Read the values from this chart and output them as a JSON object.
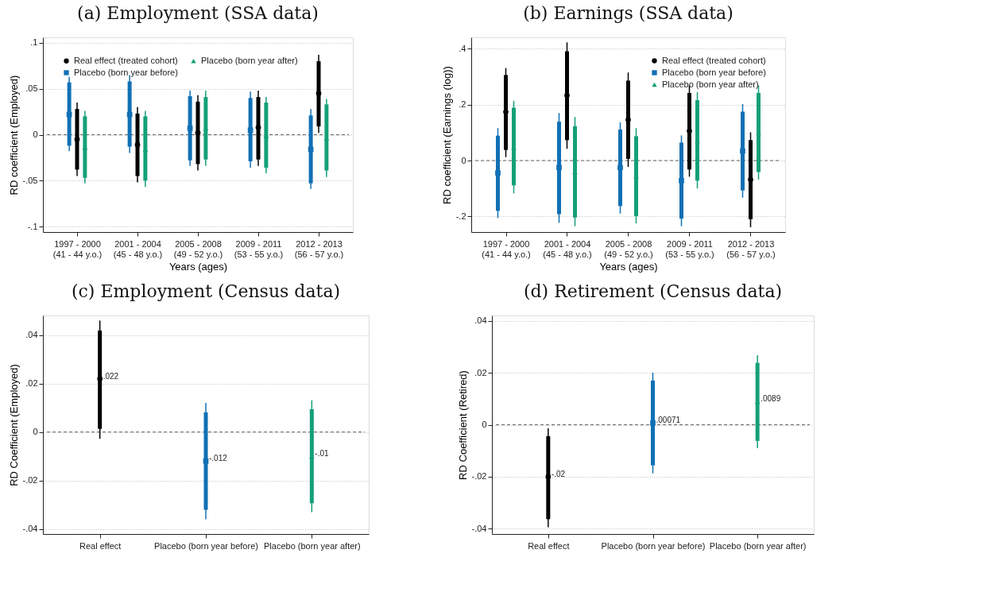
{
  "chart_data": [
    {
      "type": "scatter",
      "title": "(a) Employment (SSA data)",
      "xlabel": "Years (ages)",
      "ylabel": "RD coefficient (Employed)",
      "categories": [
        "1997 - 2000\n(41 - 44 y.o.)",
        "2001 - 2004\n(45 - 48 y.o.)",
        "2005 - 2008\n(49 - 52 y.o.)",
        "2009 - 2011\n(53 - 55 y.o.)",
        "2012 - 2013\n(56 - 57 y.o.)"
      ],
      "ylim": [
        -0.106,
        0.106
      ],
      "yticks": [
        {
          "value": -0.1,
          "label": "-.1"
        },
        {
          "value": -0.05,
          "label": "-.05"
        },
        0,
        {
          "value": 0.05,
          "label": ".05"
        },
        {
          "value": 0.1,
          "label": ".1"
        }
      ],
      "grid": "y",
      "legend": "top left",
      "ref_lines": [
        {
          "axis": "y",
          "value": 0,
          "line_style": "dashed",
          "color": "#666666"
        }
      ],
      "series": [
        {
          "name": "Real effect (treated cohort)",
          "type": "scatter",
          "color": "#000000",
          "marker": "circle",
          "values": [
            -0.005,
            -0.011,
            0.002,
            0.008,
            0.045
          ],
          "errors": [
            [
              -0.045,
              0.035
            ],
            [
              -0.052,
              0.03
            ],
            [
              -0.039,
              0.043
            ],
            [
              -0.034,
              0.048
            ],
            [
              0.002,
              0.087
            ]
          ]
        },
        {
          "name": "Placebo (born year before)",
          "type": "scatter",
          "color": "#1170b5",
          "marker": "square",
          "values": [
            0.022,
            0.022,
            0.007,
            0.005,
            -0.016
          ],
          "errors": [
            [
              -0.018,
              0.063
            ],
            [
              -0.02,
              0.065
            ],
            [
              -0.034,
              0.048
            ],
            [
              -0.036,
              0.047
            ],
            [
              -0.059,
              0.028
            ]
          ]
        },
        {
          "name": "Placebo (born year after)",
          "type": "scatter",
          "color": "#14a079",
          "marker": "triangle",
          "values": [
            -0.014,
            -0.016,
            0.007,
            -0.001,
            -0.004
          ],
          "errors": [
            [
              -0.053,
              0.026
            ],
            [
              -0.057,
              0.026
            ],
            [
              -0.034,
              0.048
            ],
            [
              -0.042,
              0.041
            ],
            [
              -0.046,
              0.039
            ]
          ]
        },
        {
          "type": "bar",
          "color": "#1170b5",
          "base": [
            -0.012,
            -0.013,
            -0.028,
            -0.029,
            -0.053
          ],
          "values": [
            0.069,
            0.071,
            0.07,
            0.069,
            0.074
          ]
        },
        {
          "type": "bar",
          "color": "#000000",
          "base": [
            -0.038,
            -0.045,
            -0.032,
            -0.027,
            0.009
          ],
          "values": [
            0.066,
            0.068,
            0.068,
            0.068,
            0.071
          ]
        },
        {
          "type": "bar",
          "color": "#14a079",
          "base": [
            -0.047,
            -0.05,
            -0.027,
            -0.036,
            -0.039
          ],
          "values": [
            0.067,
            0.07,
            0.068,
            0.071,
            0.072
          ]
        }
      ]
    },
    {
      "type": "scatter",
      "title": "(b) Earnings (SSA data)",
      "xlabel": "Years (ages)",
      "ylabel": "RD coefficient (Earnings (log))",
      "categories": [
        "1997 - 2000\n(41 - 44 y.o.)",
        "2001 - 2004\n(45 - 48 y.o.)",
        "2005 - 2008\n(49 - 52 y.o.)",
        "2009 - 2011\n(53 - 55 y.o.)",
        "2012 - 2013\n(56 - 57 y.o.)"
      ],
      "ylim": [
        -0.256,
        0.441
      ],
      "yticks": [
        {
          "value": -0.2,
          "label": "-.2"
        },
        0,
        {
          "value": 0.2,
          "label": ".2"
        },
        {
          "value": 0.4,
          "label": ".4"
        }
      ],
      "grid": "y",
      "legend": "top right",
      "ref_lines": [
        {
          "axis": "y",
          "value": 0,
          "line_style": "dashed",
          "color": "#666666"
        }
      ],
      "series": [
        {
          "name": "Real effect (treated cohort)",
          "type": "scatter",
          "color": "#000000",
          "marker": "circle",
          "values": [
            0.174,
            0.233,
            0.146,
            0.106,
            -0.068
          ],
          "errors": [
            [
              0.012,
              0.331
            ],
            [
              0.042,
              0.423
            ],
            [
              -0.023,
              0.315
            ],
            [
              -0.058,
              0.269
            ],
            [
              -0.239,
              0.101
            ]
          ]
        },
        {
          "name": "Placebo (born year before)",
          "type": "scatter",
          "color": "#1170b5",
          "marker": "square",
          "values": [
            -0.044,
            -0.025,
            -0.025,
            -0.072,
            0.034
          ],
          "errors": [
            [
              -0.206,
              0.116
            ],
            [
              -0.223,
              0.17
            ],
            [
              -0.19,
              0.137
            ],
            [
              -0.235,
              0.09
            ],
            [
              -0.133,
              0.202
            ]
          ]
        },
        {
          "name": "Placebo (born year after)",
          "type": "scatter",
          "color": "#14a079",
          "marker": "triangle",
          "values": [
            0.047,
            -0.041,
            -0.056,
            0.07,
            0.099
          ],
          "errors": [
            [
              -0.117,
              0.214
            ],
            [
              -0.235,
              0.156
            ],
            [
              -0.225,
              0.116
            ],
            [
              -0.1,
              0.245
            ],
            [
              -0.068,
              0.269
            ]
          ]
        },
        {
          "type": "bar",
          "color": "#1170b5",
          "base": [
            -0.18,
            -0.192,
            -0.163,
            -0.208,
            -0.107
          ],
          "values": [
            0.269,
            0.331,
            0.274,
            0.272,
            0.282
          ]
        },
        {
          "type": "bar",
          "color": "#000000",
          "base": [
            0.038,
            0.073,
            0.006,
            -0.032,
            -0.21
          ],
          "values": [
            0.268,
            0.318,
            0.28,
            0.274,
            0.283
          ]
        },
        {
          "type": "bar",
          "color": "#14a079",
          "base": [
            -0.089,
            -0.204,
            -0.199,
            -0.072,
            -0.041
          ],
          "values": [
            0.278,
            0.327,
            0.286,
            0.288,
            0.283
          ]
        }
      ]
    },
    {
      "type": "scatter",
      "title": "(c) Employment (Census data)",
      "ylabel": "RD Coefficient (Employed)",
      "categories": [
        "Real effect",
        "Placebo (born year before)",
        "Placebo (born year after)"
      ],
      "ylim": [
        -0.0421,
        0.0481
      ],
      "yticks": [
        {
          "value": -0.04,
          "label": "-.04"
        },
        {
          "value": -0.02,
          "label": "-.02"
        },
        0,
        {
          "value": 0.02,
          "label": ".02"
        },
        {
          "value": 0.04,
          "label": ".04"
        }
      ],
      "grid": "y",
      "ref_lines": [
        {
          "axis": "y",
          "value": 0,
          "line_style": "dashed",
          "color": "#666666"
        }
      ],
      "series": [
        {
          "type": "scatter",
          "color": "#000000",
          "marker": "circle",
          "values": [
            0.022,
            null,
            null
          ],
          "errors": [
            [
              -0.0028,
              0.046
            ],
            null,
            null
          ],
          "value_labels": [
            ".022",
            null,
            null
          ]
        },
        {
          "type": "scatter",
          "color": "#1170b5",
          "marker": "square",
          "values": [
            null,
            -0.012,
            null
          ],
          "errors": [
            null,
            [
              -0.036,
              0.012
            ],
            null
          ],
          "value_labels": [
            null,
            "-.012",
            null
          ]
        },
        {
          "type": "scatter",
          "color": "#14a079",
          "marker": "triangle",
          "values": [
            null,
            null,
            -0.01
          ],
          "errors": [
            null,
            null,
            [
              -0.0331,
              0.0131
            ]
          ],
          "value_labels": [
            null,
            null,
            "-.01"
          ]
        },
        {
          "type": "bar",
          "color": "#000000",
          "base": [
            0.0013,
            null,
            null
          ],
          "values": [
            0.0406,
            null,
            null
          ]
        },
        {
          "type": "bar",
          "color": "#1170b5",
          "base": [
            null,
            -0.0321,
            null
          ],
          "values": [
            null,
            0.0402,
            null
          ]
        },
        {
          "type": "bar",
          "color": "#14a079",
          "base": [
            null,
            null,
            -0.0294
          ],
          "values": [
            null,
            null,
            0.0388
          ]
        }
      ]
    },
    {
      "type": "scatter",
      "title": "(d) Retirement (Census data)",
      "ylabel": "RD Coefficient (Retired)",
      "categories": [
        "Real effect",
        "Placebo (born year before)",
        "Placebo (born year after)"
      ],
      "ylim": [
        -0.042,
        0.042
      ],
      "yticks": [
        {
          "value": -0.04,
          "label": "-.04"
        },
        {
          "value": -0.02,
          "label": "-.02"
        },
        0,
        {
          "value": 0.02,
          "label": ".02"
        },
        {
          "value": 0.04,
          "label": ".04"
        }
      ],
      "grid": "y",
      "ref_lines": [
        {
          "axis": "y",
          "value": 0,
          "line_style": "dashed",
          "color": "#666666"
        }
      ],
      "series": [
        {
          "type": "scatter",
          "color": "#000000",
          "marker": "circle",
          "values": [
            -0.02,
            null,
            null
          ],
          "errors": [
            [
              -0.0394,
              -0.0014
            ],
            null,
            null
          ],
          "value_labels": [
            "-.02",
            null,
            null
          ]
        },
        {
          "type": "scatter",
          "color": "#1170b5",
          "marker": "square",
          "values": [
            null,
            0.00071,
            null
          ],
          "errors": [
            null,
            [
              -0.0187,
              0.02
            ],
            null
          ],
          "value_labels": [
            null,
            ".00071",
            null
          ]
        },
        {
          "type": "scatter",
          "color": "#14a079",
          "marker": "triangle",
          "values": [
            null,
            null,
            0.0089
          ],
          "errors": [
            null,
            null,
            [
              -0.009,
              0.0267
            ]
          ],
          "value_labels": [
            null,
            null,
            ".0089"
          ]
        },
        {
          "type": "bar",
          "color": "#000000",
          "base": [
            -0.0363,
            null,
            null
          ],
          "values": [
            0.0319,
            null,
            null
          ]
        },
        {
          "type": "bar",
          "color": "#1170b5",
          "base": [
            null,
            -0.0156,
            null
          ],
          "values": [
            null,
            0.0326,
            null
          ]
        },
        {
          "type": "bar",
          "color": "#14a079",
          "base": [
            null,
            null,
            -0.0062
          ],
          "values": [
            null,
            null,
            0.03
          ]
        }
      ]
    }
  ]
}
